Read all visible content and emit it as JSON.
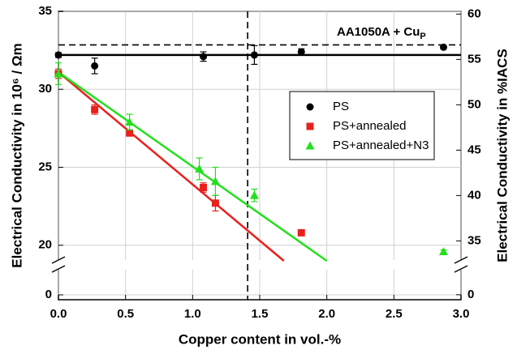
{
  "chart_data": {
    "type": "scatter",
    "xlabel": "Copper content in vol.-%",
    "ylabel": "Electrical Conductivity in 10⁶ / Ωm",
    "y2label": "Electrical Conductivity in %IACS",
    "annotation": {
      "text": "AA1050A + Cu",
      "subscript": "P"
    },
    "xlim": [
      0,
      3
    ],
    "xticks": [
      {
        "value": 0,
        "label": "0.0"
      },
      {
        "value": 0.5,
        "label": "0.5"
      },
      {
        "value": 1,
        "label": "1.0"
      },
      {
        "value": 1.5,
        "label": "1.5"
      },
      {
        "value": 2,
        "label": "2.0"
      },
      {
        "value": 2.5,
        "label": "2.5"
      },
      {
        "value": 3,
        "label": "3.0"
      }
    ],
    "ylim": [
      -0.2,
      35
    ],
    "ybreak": [
      1,
      19
    ],
    "yticks": [
      0,
      20,
      25,
      30,
      35
    ],
    "y2lim": [
      -0.35,
      60.3
    ],
    "y2break": [
      1.7,
      32.8
    ],
    "y2ticks": [
      0,
      35,
      40,
      45,
      50,
      55,
      60
    ],
    "grid": true,
    "legend": "center right",
    "series": [
      {
        "name": "PS",
        "color": "#000000",
        "marker": "circle",
        "x": [
          0.0,
          0.27,
          1.08,
          1.46,
          1.81,
          2.87
        ],
        "values": [
          32.2,
          31.5,
          32.1,
          32.2,
          32.4,
          32.7
        ],
        "errors": [
          0.15,
          0.5,
          0.3,
          0.6,
          0.2,
          0.1
        ]
      },
      {
        "name": "PS+annealed",
        "color": "#e8201c",
        "marker": "square",
        "x": [
          0.0,
          0.27,
          0.53,
          1.08,
          1.17,
          1.81
        ],
        "values": [
          31.0,
          28.7,
          27.2,
          23.7,
          22.7,
          20.8
        ],
        "errors": [
          0.3,
          0.3,
          0.2,
          0.3,
          0.5,
          0.1
        ]
      },
      {
        "name": "PS+annealed+N3",
        "color": "#22e01c",
        "marker": "triangle",
        "x": [
          0.0,
          0.53,
          1.05,
          1.17,
          1.46,
          2.87
        ],
        "values": [
          31.0,
          27.9,
          24.9,
          24.1,
          23.2,
          19.6
        ],
        "errors": [
          0.7,
          0.5,
          0.7,
          0.9,
          0.4,
          0.1
        ]
      }
    ],
    "lines": [
      {
        "color": "#000000",
        "x": [
          0,
          3
        ],
        "values": [
          32.2,
          32.2
        ]
      },
      {
        "color": "#e8201c",
        "x": [
          0,
          1.68
        ],
        "values": [
          31.1,
          19.0
        ]
      },
      {
        "color": "#22e01c",
        "x": [
          0,
          2.0
        ],
        "values": [
          31.1,
          19.0
        ]
      }
    ],
    "reference_lines": [
      {
        "axis": "x",
        "value": 1.41,
        "style": "dashed"
      },
      {
        "axis": "y",
        "value": 32.85,
        "style": "dashed"
      }
    ]
  }
}
